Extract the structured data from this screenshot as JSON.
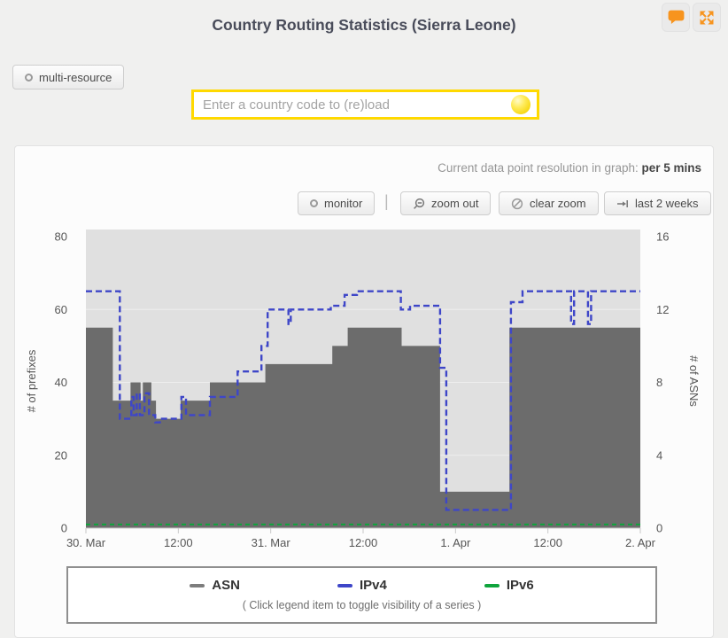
{
  "header": {
    "title": "Country Routing Statistics (Sierra Leone)",
    "accent_color": "#F7941E",
    "icons": [
      "speech-bubble",
      "fullscreen-expand"
    ]
  },
  "controls": {
    "multi_resource_label": "multi-resource",
    "country_input": {
      "value": "",
      "placeholder": "Enter a country code to (re)load",
      "border_color": "#FFD900",
      "status_icon": "yellow-globe-spinner"
    }
  },
  "panel": {
    "resolution_label": "Current data point resolution in graph: ",
    "resolution_value": "per 5 mins",
    "separator": "|",
    "buttons": [
      {
        "label": "monitor",
        "icon": "circle-icon"
      },
      {
        "label": "zoom out",
        "icon": "magnifier-minus-icon"
      },
      {
        "label": "clear zoom",
        "icon": "ban-icon"
      },
      {
        "label": "last 2 weeks",
        "icon": "arrow-to-bar-icon"
      }
    ]
  },
  "chart_data": {
    "type": "line",
    "subtype": "step-lines-with-area",
    "x_axis": {
      "tick_labels": [
        "30. Mar",
        "12:00",
        "31. Mar",
        "12:00",
        "1. Apr",
        "12:00",
        "2. Apr"
      ],
      "hours_range": [
        0,
        72
      ],
      "hours_per_tick": 12
    },
    "y_left": {
      "label": "# of prefixes",
      "ticks": [
        0,
        20,
        40,
        60,
        80
      ],
      "range": [
        0,
        80
      ]
    },
    "y_right": {
      "label": "# of ASNs",
      "ticks": [
        0,
        4,
        8,
        12,
        16
      ],
      "range": [
        0,
        16
      ]
    },
    "plot_bg": "#e0e0e0",
    "grid_color": "#eeeeee",
    "axis_color": "#c9c9c9",
    "series": [
      {
        "name": "ASN",
        "axis": "right",
        "style": "area-step",
        "color": "#6c6c6c",
        "points": [
          [
            0,
            11
          ],
          [
            3.5,
            7
          ],
          [
            5.8,
            8
          ],
          [
            7.1,
            7
          ],
          [
            7.4,
            8
          ],
          [
            8.5,
            7
          ],
          [
            9.1,
            6
          ],
          [
            12.3,
            7
          ],
          [
            16.1,
            8
          ],
          [
            23.3,
            9
          ],
          [
            32,
            10
          ],
          [
            34,
            11
          ],
          [
            41,
            10
          ],
          [
            46,
            2
          ],
          [
            55,
            11
          ],
          [
            72,
            11
          ]
        ]
      },
      {
        "name": "IPv4",
        "axis": "left",
        "style": "step-dashed",
        "color": "#3E46C8",
        "dash": "7 4",
        "width": 2.4,
        "points": [
          [
            0,
            65
          ],
          [
            4.4,
            30
          ],
          [
            5.9,
            36
          ],
          [
            6.2,
            31
          ],
          [
            6.6,
            37
          ],
          [
            7,
            31
          ],
          [
            7.6,
            37
          ],
          [
            8.2,
            31
          ],
          [
            9,
            29
          ],
          [
            9.6,
            30
          ],
          [
            12.4,
            36
          ],
          [
            13,
            31
          ],
          [
            16.1,
            36
          ],
          [
            19.7,
            43
          ],
          [
            22.8,
            50
          ],
          [
            23.6,
            60
          ],
          [
            26.3,
            56
          ],
          [
            26.6,
            60
          ],
          [
            31.8,
            61
          ],
          [
            33.6,
            64
          ],
          [
            35.2,
            65
          ],
          [
            40.9,
            60
          ],
          [
            42.1,
            61
          ],
          [
            46,
            44
          ],
          [
            46.8,
            5
          ],
          [
            55.2,
            62
          ],
          [
            56.7,
            65
          ],
          [
            63,
            56
          ],
          [
            63.4,
            65
          ],
          [
            65.2,
            56
          ],
          [
            65.6,
            65
          ],
          [
            72,
            65
          ]
        ]
      },
      {
        "name": "IPv6",
        "axis": "left",
        "style": "dashed",
        "color": "#0FA43C",
        "dash": "5 4",
        "width": 2,
        "points": [
          [
            0,
            1
          ],
          [
            72,
            1
          ]
        ]
      }
    ]
  },
  "legend": {
    "items": [
      {
        "label": "ASN",
        "color": "#7d7d7d"
      },
      {
        "label": "IPv4",
        "color": "#3E46C8"
      },
      {
        "label": "IPv6",
        "color": "#0FA43C"
      }
    ],
    "hint": "( Click legend item to toggle visibility of a series )"
  }
}
